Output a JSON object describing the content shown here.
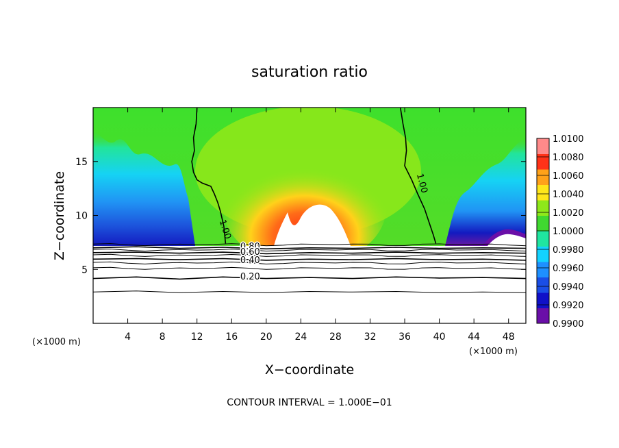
{
  "chart_data": {
    "type": "heatmap",
    "title": "saturation ratio",
    "xlabel": "X−coordinate",
    "ylabel": "Z−coordinate",
    "x_unit_left": "(×1000 m)",
    "x_unit_right": "(×1000 m)",
    "xlim": [
      0,
      50
    ],
    "ylim": [
      0,
      20
    ],
    "x_ticks": [
      4,
      8,
      12,
      16,
      20,
      24,
      28,
      32,
      36,
      40,
      44,
      48
    ],
    "x_tick_labels": [
      "4",
      "8",
      "12",
      "16",
      "20",
      "24",
      "28",
      "32",
      "36",
      "40",
      "44",
      "48"
    ],
    "y_ticks": [
      5,
      10,
      15
    ],
    "y_tick_labels": [
      "5",
      "10",
      "15"
    ],
    "colorbar": {
      "min": 0.99,
      "max": 1.01,
      "tick_values": [
        1.01,
        1.008,
        1.006,
        1.004,
        1.002,
        1.0,
        0.998,
        0.996,
        0.994,
        0.992,
        0.99
      ],
      "tick_labels": [
        "1.0100",
        "1.0080",
        "1.0060",
        "1.0040",
        "1.0020",
        "1.0000",
        "0.9980",
        "0.9960",
        "0.9940",
        "0.9920",
        "0.9900"
      ],
      "colors": [
        "#6a0fa8",
        "#1010c8",
        "#1a4ee6",
        "#1e90ff",
        "#13d2ff",
        "#20e5a0",
        "#40d830",
        "#8ee81a",
        "#ffe61a",
        "#ffa21a",
        "#ff3218",
        "#ff8a8a"
      ]
    },
    "contour_labels": [
      "1.00",
      "1.00",
      "0.80",
      "0.60",
      "0.40",
      "0.20"
    ],
    "contour_lines": [
      {
        "level": 1.0,
        "x": [
          12,
          11.9,
          11.6,
          11.7,
          11.4,
          11.6,
          12.0,
          12.6,
          13.6,
          14.0,
          14.4,
          14.7,
          15.1,
          15.3
        ],
        "y": [
          20.0,
          18.5,
          17.2,
          16.0,
          15.0,
          14.0,
          13.3,
          13.0,
          12.7,
          12.0,
          11.2,
          10.4,
          9.0,
          7.4
        ]
      },
      {
        "level": 1.0,
        "x": [
          35.5,
          35.8,
          36.1,
          36.2,
          36.0,
          36.8,
          37.5,
          38.3,
          38.8,
          39.3,
          39.6
        ],
        "y": [
          20.0,
          18.5,
          17.2,
          16.0,
          14.6,
          13.3,
          12.0,
          10.6,
          9.4,
          8.2,
          7.4
        ]
      },
      {
        "level": 0.8,
        "x": [
          0,
          5,
          10,
          15,
          20,
          25,
          30,
          35,
          40,
          45,
          50
        ],
        "y": [
          7.0,
          7.1,
          6.95,
          7.05,
          6.9,
          7.0,
          6.95,
          7.05,
          6.95,
          7.0,
          6.95
        ]
      },
      {
        "level": 0.6,
        "x": [
          0,
          5,
          10,
          15,
          20,
          25,
          30,
          35,
          40,
          45,
          50
        ],
        "y": [
          6.55,
          6.6,
          6.5,
          6.6,
          6.45,
          6.55,
          6.5,
          6.6,
          6.5,
          6.55,
          6.5
        ]
      },
      {
        "level": 0.4,
        "x": [
          0,
          5,
          10,
          15,
          20,
          25,
          30,
          35,
          40,
          45,
          50
        ],
        "y": [
          5.95,
          6.0,
          5.9,
          6.0,
          5.85,
          5.95,
          5.9,
          6.0,
          5.9,
          5.95,
          5.85
        ]
      },
      {
        "level": 0.2,
        "x": [
          0,
          5,
          10,
          15,
          20,
          25,
          30,
          35,
          40,
          45,
          50
        ],
        "y": [
          4.15,
          4.3,
          4.1,
          4.3,
          4.15,
          4.25,
          4.15,
          4.3,
          4.2,
          4.25,
          4.15
        ]
      },
      {
        "level": 0.0,
        "x": [
          0,
          5,
          10,
          15,
          20,
          25,
          30,
          35,
          40,
          45,
          50
        ],
        "y": [
          2.9,
          3.0,
          2.85,
          2.95,
          2.85,
          2.95,
          2.9,
          2.95,
          2.85,
          2.9,
          2.85
        ]
      }
    ],
    "contour_interval_text": "CONTOUR INTERVAL = 1.000E−01"
  }
}
